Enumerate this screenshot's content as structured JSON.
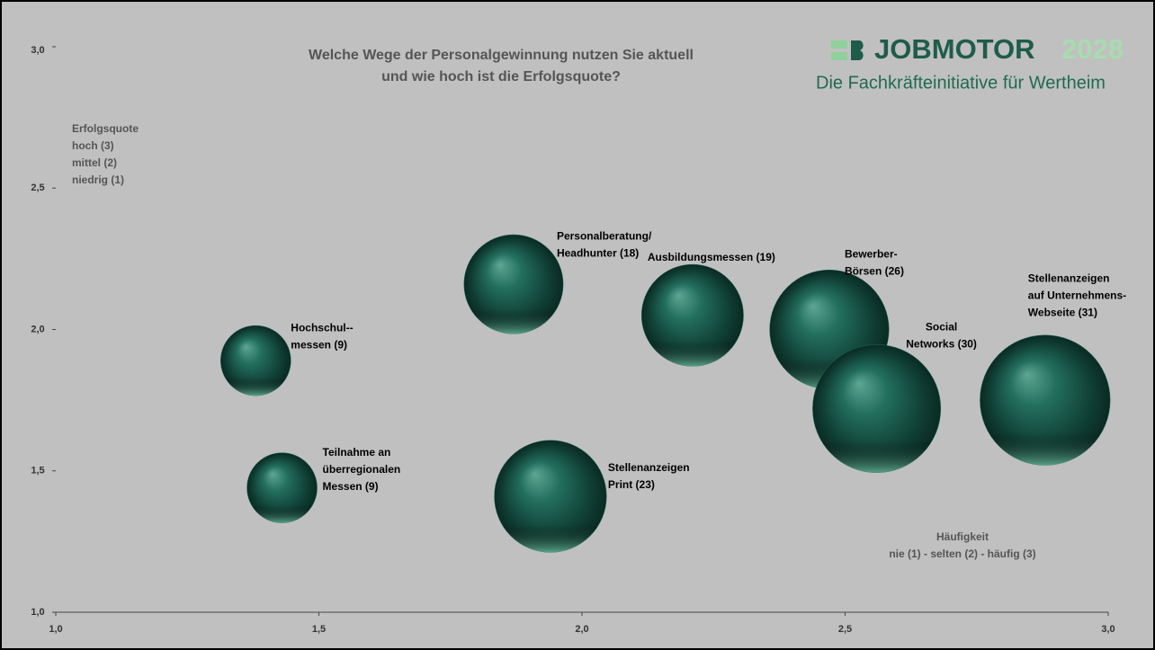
{
  "logo": {
    "name": "JOBMOTOR",
    "year": "2028",
    "tagline": "Die Fachkräfteinitiative für Wertheim"
  },
  "chart_data": {
    "type": "bubble",
    "title": [
      "Welche Wege der Personalgewinnung nutzen Sie aktuell",
      "und wie hoch ist die Erfolgsquote?"
    ],
    "y_annotation": [
      "Erfolgsquote",
      "hoch (3)",
      "mittel (2)",
      "niedrig (1)"
    ],
    "x_annotation": [
      "Häufigkeit",
      "nie (1) - selten (2) - häufig (3)"
    ],
    "xlim": [
      1.0,
      3.0
    ],
    "ylim": [
      1.0,
      3.0
    ],
    "xticks": [
      {
        "value": 1.0,
        "label": "1,0"
      },
      {
        "value": 1.5,
        "label": "1,5"
      },
      {
        "value": 2.0,
        "label": "2,0"
      },
      {
        "value": 2.5,
        "label": "2,5"
      },
      {
        "value": 3.0,
        "label": "3,0"
      }
    ],
    "yticks": [
      {
        "value": 1.0,
        "label": "1,0"
      },
      {
        "value": 1.5,
        "label": "1,5"
      },
      {
        "value": 2.0,
        "label": "2,0"
      },
      {
        "value": 2.5,
        "label": "2,5"
      },
      {
        "value": 3.0,
        "label": "3,0"
      }
    ],
    "series": [
      {
        "color": "#1e6b5a",
        "labels": [
          [
            "Hochschul--",
            "messen (9)"
          ],
          [
            "Teilnahme an",
            "überregionalen",
            "Messen (9)"
          ],
          [
            "Personalberatung/",
            "Headhunter (18)"
          ],
          [
            "Stellenanzeigen",
            "Print (23)"
          ],
          [
            "Ausbildungsmessen (19)"
          ],
          [
            "Bewerber-",
            "Börsen (26)"
          ],
          [
            "Social",
            "Networks (30)"
          ],
          [
            "Stellenanzeigen",
            "auf Unternehmens-",
            "Webseite (31)"
          ]
        ],
        "x": [
          1.38,
          1.43,
          1.87,
          1.94,
          2.21,
          2.47,
          2.56,
          2.88
        ],
        "values": [
          1.89,
          1.44,
          2.16,
          1.41,
          2.05,
          2.0,
          1.72,
          1.75
        ],
        "sizes": [
          9,
          9,
          18,
          23,
          19,
          26,
          30,
          31
        ]
      }
    ]
  }
}
